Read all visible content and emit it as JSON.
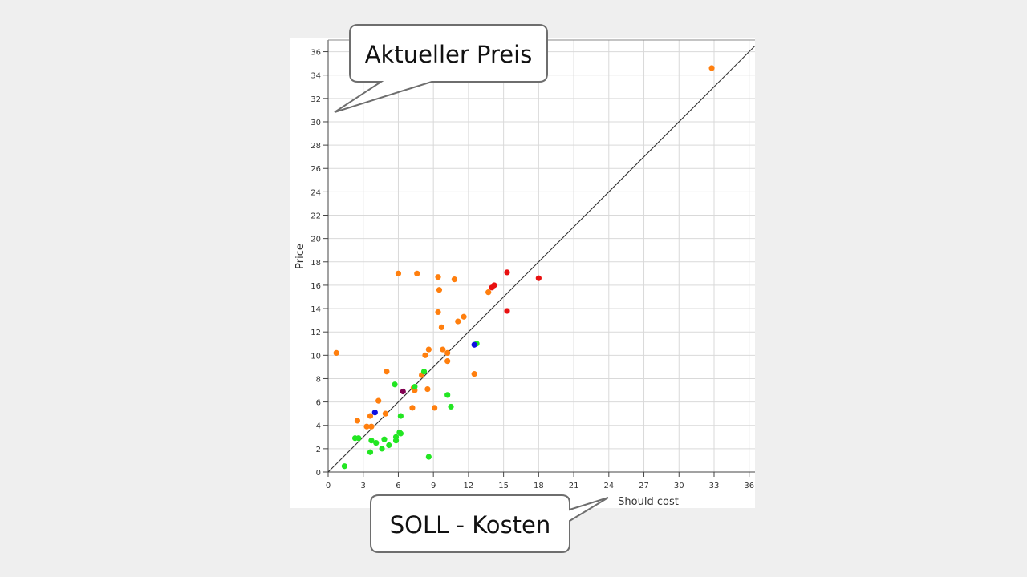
{
  "callouts": {
    "price_label": "Aktueller Preis",
    "cost_label": "SOLL - Kosten"
  },
  "chart_data": {
    "type": "scatter",
    "xlabel": "Should cost",
    "ylabel": "Price",
    "xlim": [
      0,
      36.5
    ],
    "ylim": [
      0,
      37
    ],
    "x_ticks": [
      0,
      3,
      6,
      9,
      12,
      15,
      18,
      21,
      24,
      27,
      30,
      33,
      36
    ],
    "y_ticks": [
      0,
      2,
      4,
      6,
      8,
      10,
      12,
      14,
      16,
      18,
      20,
      22,
      24,
      26,
      28,
      30,
      32,
      34,
      36
    ],
    "grid": true,
    "reference_line": {
      "x": [
        0,
        36.5
      ],
      "y": [
        0,
        36.5
      ]
    },
    "colors": {
      "orange": "#ff7f0e",
      "green": "#22e622",
      "red": "#e81010",
      "blue": "#1010e0",
      "purple": "#800050"
    },
    "series": [
      {
        "color": "orange",
        "points": [
          [
            0.7,
            10.2
          ],
          [
            2.5,
            4.4
          ],
          [
            3.3,
            3.9
          ],
          [
            3.6,
            4.8
          ],
          [
            3.7,
            3.9
          ],
          [
            4.3,
            6.1
          ],
          [
            4.9,
            5.0
          ],
          [
            5.0,
            8.6
          ],
          [
            6.0,
            17.0
          ],
          [
            7.2,
            5.5
          ],
          [
            7.3,
            7.2
          ],
          [
            7.4,
            7.0
          ],
          [
            7.6,
            17.0
          ],
          [
            8.0,
            8.3
          ],
          [
            8.3,
            10.0
          ],
          [
            8.5,
            7.1
          ],
          [
            8.6,
            10.5
          ],
          [
            9.1,
            5.5
          ],
          [
            9.4,
            16.7
          ],
          [
            9.4,
            13.7
          ],
          [
            9.5,
            15.6
          ],
          [
            9.7,
            12.4
          ],
          [
            9.8,
            10.5
          ],
          [
            10.2,
            9.5
          ],
          [
            10.2,
            10.2
          ],
          [
            10.8,
            16.5
          ],
          [
            11.1,
            12.9
          ],
          [
            11.6,
            13.3
          ],
          [
            12.5,
            8.4
          ],
          [
            13.7,
            15.4
          ],
          [
            32.8,
            34.6
          ]
        ]
      },
      {
        "color": "green",
        "points": [
          [
            1.4,
            0.5
          ],
          [
            2.3,
            2.9
          ],
          [
            2.6,
            2.9
          ],
          [
            3.6,
            1.7
          ],
          [
            3.7,
            2.7
          ],
          [
            4.1,
            2.5
          ],
          [
            4.6,
            2.0
          ],
          [
            4.8,
            2.8
          ],
          [
            5.2,
            2.3
          ],
          [
            5.8,
            2.7
          ],
          [
            5.8,
            3.0
          ],
          [
            6.1,
            3.4
          ],
          [
            6.2,
            3.3
          ],
          [
            6.2,
            4.8
          ],
          [
            5.7,
            7.5
          ],
          [
            7.4,
            7.3
          ],
          [
            8.2,
            8.6
          ],
          [
            8.6,
            1.3
          ],
          [
            10.2,
            6.6
          ],
          [
            10.5,
            5.6
          ],
          [
            12.7,
            11.0
          ]
        ]
      },
      {
        "color": "red",
        "points": [
          [
            14.0,
            15.8
          ],
          [
            14.2,
            16.0
          ],
          [
            15.3,
            17.1
          ],
          [
            15.3,
            13.8
          ],
          [
            18.0,
            16.6
          ]
        ]
      },
      {
        "color": "blue",
        "points": [
          [
            4.0,
            5.1
          ],
          [
            12.5,
            10.9
          ]
        ]
      },
      {
        "color": "purple",
        "points": [
          [
            6.4,
            6.9
          ]
        ]
      }
    ]
  }
}
